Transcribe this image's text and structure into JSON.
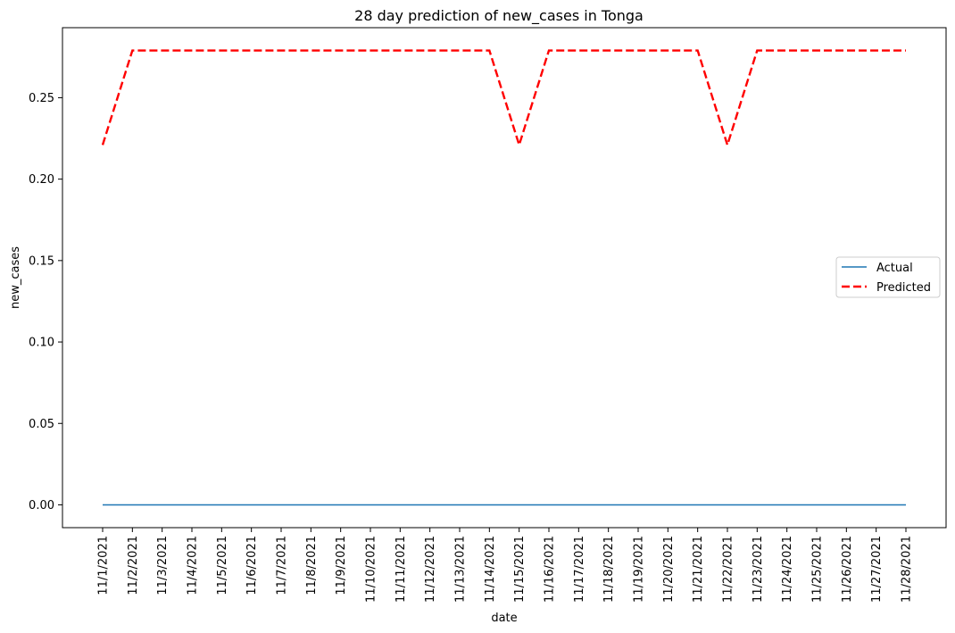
{
  "chart_data": {
    "type": "line",
    "title": "28 day prediction of new_cases in Tonga",
    "xlabel": "date",
    "ylabel": "new_cases",
    "x": [
      "11/1/2021",
      "11/2/2021",
      "11/3/2021",
      "11/4/2021",
      "11/5/2021",
      "11/6/2021",
      "11/7/2021",
      "11/8/2021",
      "11/9/2021",
      "11/10/2021",
      "11/11/2021",
      "11/12/2021",
      "11/13/2021",
      "11/14/2021",
      "11/15/2021",
      "11/16/2021",
      "11/17/2021",
      "11/18/2021",
      "11/19/2021",
      "11/20/2021",
      "11/21/2021",
      "11/22/2021",
      "11/23/2021",
      "11/24/2021",
      "11/25/2021",
      "11/26/2021",
      "11/27/2021",
      "11/28/2021"
    ],
    "series": [
      {
        "name": "Actual",
        "color": "#1f77b4",
        "style": "solid",
        "values": [
          0,
          0,
          0,
          0,
          0,
          0,
          0,
          0,
          0,
          0,
          0,
          0,
          0,
          0,
          0,
          0,
          0,
          0,
          0,
          0,
          0,
          0,
          0,
          0,
          0,
          0,
          0,
          0
        ]
      },
      {
        "name": "Predicted",
        "color": "#ff0000",
        "style": "dashed",
        "values": [
          0.221,
          0.279,
          0.279,
          0.279,
          0.279,
          0.279,
          0.279,
          0.279,
          0.279,
          0.279,
          0.279,
          0.279,
          0.279,
          0.279,
          0.221,
          0.279,
          0.279,
          0.279,
          0.279,
          0.279,
          0.279,
          0.221,
          0.279,
          0.279,
          0.279,
          0.279,
          0.279,
          0.279
        ]
      }
    ],
    "yticks": [
      0.0,
      0.05,
      0.1,
      0.15,
      0.2,
      0.25
    ],
    "ytick_labels": [
      "0.00",
      "0.05",
      "0.10",
      "0.15",
      "0.20",
      "0.25"
    ],
    "ylim": [
      -0.014,
      0.293
    ],
    "grid": false,
    "legend_position": "center-right"
  }
}
